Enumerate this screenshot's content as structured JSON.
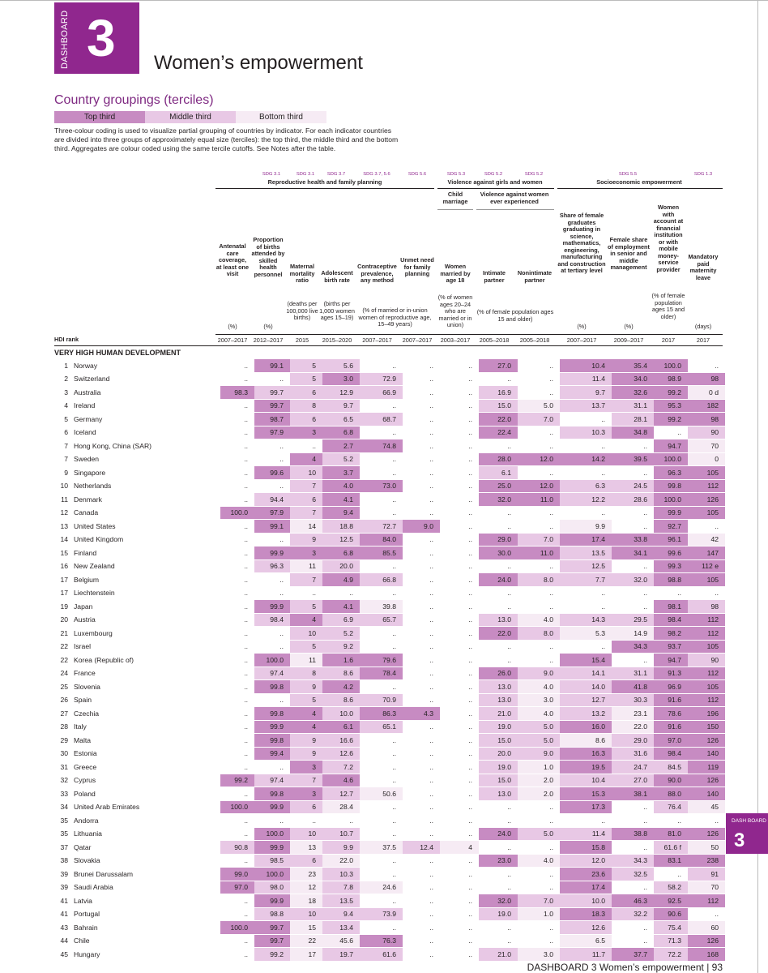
{
  "dashboard": {
    "label": "DASHBOARD",
    "number": "3",
    "title": "Women’s empowerment"
  },
  "groupings": {
    "title": "Country groupings (terciles)",
    "top": "Top third",
    "middle": "Middle third",
    "bottom": "Bottom third"
  },
  "intro": "Three-colour coding is used to visualize partial grouping of countries by indicator. For each indicator countries are divided into three groups of approximately equal size (terciles): the top third, the middle third and the bottom third. Aggregates are colour coded using the same tercile cutoffs. See Notes after the table.",
  "headers": {
    "group_repro": "Reproductive health and family planning",
    "group_violence": "Violence against girls and women",
    "group_socio": "Socioeconomic empowerment",
    "sub_child": "Child marriage",
    "sub_violence": "Violence against women ever experienced",
    "sdg_31a": "SDG 3.1",
    "sdg_31b": "SDG 3.1",
    "sdg_37a": "SDG 3.7",
    "sdg_3756": "SDG 3.7, 5.6",
    "sdg_56": "SDG 5.6",
    "sdg_53": "SDG 5.3",
    "sdg_52a": "SDG 5.2",
    "sdg_52b": "SDG 5.2",
    "sdg_55": "SDG 5.5",
    "sdg_13": "SDG 1.3",
    "col1": "Antenatal care coverage, at least one visit",
    "col2": "Proportion of births attended by skilled health personnel",
    "col3": "Maternal mortality ratio",
    "col4": "Adolescent birth rate",
    "col5": "Contraceptive prevalence, any method",
    "col6": "Unmet need for family planning",
    "col7": "Women married by age 18",
    "col8": "Intimate partner",
    "col9": "Nonintimate partner",
    "col10": "Share of female graduates graduating in science, mathematics, engineering, manufacturing and construction at tertiary level",
    "col11": "Female share of employment in senior and middle management",
    "col12": "Women with account at financial institution or with mobile money-service provider",
    "col13": "Mandatory paid maternity leave",
    "u1": "(%)",
    "u2": "(%)",
    "u3": "(deaths per 100,000 live births)",
    "u4": "(births per 1,000 women ages 15–19)",
    "u56": "(% of married or in-union women of reproductive age, 15–49 years)",
    "u7": "(% of women ages 20–24 who are married or in union)",
    "u89": "(% of female population ages 15 and older)",
    "u10": "(%)",
    "u11": "(%)",
    "u12": "(% of female population ages 15 and older)",
    "u13": "(days)",
    "hdi_rank": "HDI rank",
    "y1": "2007–2017",
    "y2": "2012–2017",
    "y3": "2015",
    "y4": "2015–2020",
    "y5": "2007–2017",
    "y6": "2007–2017",
    "y7": "2003–2017",
    "y8": "2005–2018",
    "y9": "2005–2018",
    "y10": "2007–2017",
    "y11": "2009–2017",
    "y12": "2017",
    "y13": "2017"
  },
  "section": "VERY HIGH HUMAN DEVELOPMENT",
  "rows": [
    [
      "1",
      "Norway",
      "..",
      "99.1",
      "5",
      "5.6",
      "..",
      "..",
      "..",
      "27.0",
      "..",
      "10.4",
      "35.4",
      "100.0",
      ".."
    ],
    [
      "2",
      "Switzerland",
      "..",
      "..",
      "5",
      "3.0",
      "72.9",
      "..",
      "..",
      "..",
      "..",
      "11.4",
      "34.0",
      "98.9",
      "98"
    ],
    [
      "3",
      "Australia",
      "98.3",
      "99.7",
      "6",
      "12.9",
      "66.9",
      "..",
      "..",
      "16.9",
      "..",
      "9.7",
      "32.6",
      "99.2",
      "0 d"
    ],
    [
      "4",
      "Ireland",
      "..",
      "99.7",
      "8",
      "9.7",
      "..",
      "..",
      "..",
      "15.0",
      "5.0",
      "13.7",
      "31.1",
      "95.3",
      "182"
    ],
    [
      "5",
      "Germany",
      "..",
      "98.7",
      "6",
      "6.5",
      "68.7",
      "..",
      "..",
      "22.0",
      "7.0",
      "..",
      "28.1",
      "99.2",
      "98"
    ],
    [
      "6",
      "Iceland",
      "..",
      "97.9",
      "3",
      "6.8",
      "..",
      "..",
      "..",
      "22.4",
      "..",
      "10.3",
      "34.8",
      "..",
      "90"
    ],
    [
      "7",
      "Hong Kong, China (SAR)",
      "..",
      "..",
      "..",
      "2.7",
      "74.8",
      "..",
      "..",
      "..",
      "..",
      "..",
      "..",
      "94.7",
      "70"
    ],
    [
      "7",
      "Sweden",
      "..",
      "..",
      "4",
      "5.2",
      "..",
      "..",
      "..",
      "28.0",
      "12.0",
      "14.2",
      "39.5",
      "100.0",
      "0"
    ],
    [
      "9",
      "Singapore",
      "..",
      "99.6",
      "10",
      "3.7",
      "..",
      "..",
      "..",
      "6.1",
      "..",
      "..",
      "..",
      "96.3",
      "105"
    ],
    [
      "10",
      "Netherlands",
      "..",
      "..",
      "7",
      "4.0",
      "73.0",
      "..",
      "..",
      "25.0",
      "12.0",
      "6.3",
      "24.5",
      "99.8",
      "112"
    ],
    [
      "11",
      "Denmark",
      "..",
      "94.4",
      "6",
      "4.1",
      "..",
      "..",
      "..",
      "32.0",
      "11.0",
      "12.2",
      "28.6",
      "100.0",
      "126"
    ],
    [
      "12",
      "Canada",
      "100.0",
      "97.9",
      "7",
      "9.4",
      "..",
      "..",
      "..",
      "..",
      "..",
      "..",
      "..",
      "99.9",
      "105"
    ],
    [
      "13",
      "United States",
      "..",
      "99.1",
      "14",
      "18.8",
      "72.7",
      "9.0",
      "..",
      "..",
      "..",
      "9.9",
      "..",
      "92.7",
      ".."
    ],
    [
      "14",
      "United Kingdom",
      "..",
      "..",
      "9",
      "12.5",
      "84.0",
      "..",
      "..",
      "29.0",
      "7.0",
      "17.4",
      "33.8",
      "96.1",
      "42"
    ],
    [
      "15",
      "Finland",
      "..",
      "99.9",
      "3",
      "6.8",
      "85.5",
      "..",
      "..",
      "30.0",
      "11.0",
      "13.5",
      "34.1",
      "99.6",
      "147"
    ],
    [
      "16",
      "New Zealand",
      "..",
      "96.3",
      "11",
      "20.0",
      "..",
      "..",
      "..",
      "..",
      "..",
      "12.5",
      "..",
      "99.3",
      "112 e"
    ],
    [
      "17",
      "Belgium",
      "..",
      "..",
      "7",
      "4.9",
      "66.8",
      "..",
      "..",
      "24.0",
      "8.0",
      "7.7",
      "32.0",
      "98.8",
      "105"
    ],
    [
      "17",
      "Liechtenstein",
      "..",
      "..",
      "..",
      "..",
      "..",
      "..",
      "..",
      "..",
      "..",
      "..",
      "..",
      "..",
      ".."
    ],
    [
      "19",
      "Japan",
      "..",
      "99.9",
      "5",
      "4.1",
      "39.8",
      "..",
      "..",
      "..",
      "..",
      "..",
      "..",
      "98.1",
      "98"
    ],
    [
      "20",
      "Austria",
      "..",
      "98.4",
      "4",
      "6.9",
      "65.7",
      "..",
      "..",
      "13.0",
      "4.0",
      "14.3",
      "29.5",
      "98.4",
      "112"
    ],
    [
      "21",
      "Luxembourg",
      "..",
      "..",
      "10",
      "5.2",
      "..",
      "..",
      "..",
      "22.0",
      "8.0",
      "5.3",
      "14.9",
      "98.2",
      "112"
    ],
    [
      "22",
      "Israel",
      "..",
      "..",
      "5",
      "9.2",
      "..",
      "..",
      "..",
      "..",
      "..",
      "..",
      "34.3",
      "93.7",
      "105"
    ],
    [
      "22",
      "Korea (Republic of)",
      "..",
      "100.0",
      "11",
      "1.6",
      "79.6",
      "..",
      "..",
      "..",
      "..",
      "15.4",
      "..",
      "94.7",
      "90"
    ],
    [
      "24",
      "France",
      "..",
      "97.4",
      "8",
      "8.6",
      "78.4",
      "..",
      "..",
      "26.0",
      "9.0",
      "14.1",
      "31.1",
      "91.3",
      "112"
    ],
    [
      "25",
      "Slovenia",
      "..",
      "99.8",
      "9",
      "4.2",
      "..",
      "..",
      "..",
      "13.0",
      "4.0",
      "14.0",
      "41.8",
      "96.9",
      "105"
    ],
    [
      "26",
      "Spain",
      "..",
      "..",
      "5",
      "8.6",
      "70.9",
      "..",
      "..",
      "13.0",
      "3.0",
      "12.7",
      "30.3",
      "91.6",
      "112"
    ],
    [
      "27",
      "Czechia",
      "..",
      "99.8",
      "4",
      "10.0",
      "86.3",
      "4.3",
      "..",
      "21.0",
      "4.0",
      "13.2",
      "23.1",
      "78.6",
      "196"
    ],
    [
      "28",
      "Italy",
      "..",
      "99.9",
      "4",
      "6.1",
      "65.1",
      "..",
      "..",
      "19.0",
      "5.0",
      "16.0",
      "22.0",
      "91.6",
      "150"
    ],
    [
      "29",
      "Malta",
      "..",
      "99.8",
      "9",
      "16.6",
      "..",
      "..",
      "..",
      "15.0",
      "5.0",
      "8.6",
      "29.0",
      "97.0",
      "126"
    ],
    [
      "30",
      "Estonia",
      "..",
      "99.4",
      "9",
      "12.6",
      "..",
      "..",
      "..",
      "20.0",
      "9.0",
      "16.3",
      "31.6",
      "98.4",
      "140"
    ],
    [
      "31",
      "Greece",
      "..",
      "..",
      "3",
      "7.2",
      "..",
      "..",
      "..",
      "19.0",
      "1.0",
      "19.5",
      "24.7",
      "84.5",
      "119"
    ],
    [
      "32",
      "Cyprus",
      "99.2",
      "97.4",
      "7",
      "4.6",
      "..",
      "..",
      "..",
      "15.0",
      "2.0",
      "10.4",
      "27.0",
      "90.0",
      "126"
    ],
    [
      "33",
      "Poland",
      "..",
      "99.8",
      "3",
      "12.7",
      "50.6",
      "..",
      "..",
      "13.0",
      "2.0",
      "15.3",
      "38.1",
      "88.0",
      "140"
    ],
    [
      "34",
      "United Arab Emirates",
      "100.0",
      "99.9",
      "6",
      "28.4",
      "..",
      "..",
      "..",
      "..",
      "..",
      "17.3",
      "..",
      "76.4",
      "45"
    ],
    [
      "35",
      "Andorra",
      "..",
      "..",
      "..",
      "..",
      "..",
      "..",
      "..",
      "..",
      "..",
      "..",
      "..",
      "..",
      ".."
    ],
    [
      "35",
      "Lithuania",
      "..",
      "100.0",
      "10",
      "10.7",
      "..",
      "..",
      "..",
      "24.0",
      "5.0",
      "11.4",
      "38.8",
      "81.0",
      "126"
    ],
    [
      "37",
      "Qatar",
      "90.8",
      "99.9",
      "13",
      "9.9",
      "37.5",
      "12.4",
      "4",
      "..",
      "..",
      "15.8",
      "..",
      "61.6 f",
      "50"
    ],
    [
      "38",
      "Slovakia",
      "..",
      "98.5",
      "6",
      "22.0",
      "..",
      "..",
      "..",
      "23.0",
      "4.0",
      "12.0",
      "34.3",
      "83.1",
      "238"
    ],
    [
      "39",
      "Brunei Darussalam",
      "99.0",
      "100.0",
      "23",
      "10.3",
      "..",
      "..",
      "..",
      "..",
      "..",
      "23.6",
      "32.5",
      "..",
      "91"
    ],
    [
      "39",
      "Saudi Arabia",
      "97.0",
      "98.0",
      "12",
      "7.8",
      "24.6",
      "..",
      "..",
      "..",
      "..",
      "17.4",
      "..",
      "58.2",
      "70"
    ],
    [
      "41",
      "Latvia",
      "..",
      "99.9",
      "18",
      "13.5",
      "..",
      "..",
      "..",
      "32.0",
      "7.0",
      "10.0",
      "46.3",
      "92.5",
      "112"
    ],
    [
      "41",
      "Portugal",
      "..",
      "98.8",
      "10",
      "9.4",
      "73.9",
      "..",
      "..",
      "19.0",
      "1.0",
      "18.3",
      "32.2",
      "90.6",
      ".."
    ],
    [
      "43",
      "Bahrain",
      "100.0",
      "99.7",
      "15",
      "13.4",
      "..",
      "..",
      "..",
      "..",
      "..",
      "12.6",
      "..",
      "75.4",
      "60"
    ],
    [
      "44",
      "Chile",
      "..",
      "99.7",
      "22",
      "45.6",
      "76.3",
      "..",
      "..",
      "..",
      "..",
      "6.5",
      "..",
      "71.3",
      "126"
    ],
    [
      "45",
      "Hungary",
      "..",
      "99.2",
      "17",
      "19.7",
      "61.6",
      "..",
      "..",
      "21.0",
      "3.0",
      "11.7",
      "37.7",
      "72.2",
      "168"
    ]
  ],
  "tiers": [
    [
      0,
      1,
      2,
      2,
      0,
      0,
      0,
      1,
      0,
      1,
      1,
      1,
      0
    ],
    [
      0,
      0,
      2,
      1,
      2,
      0,
      0,
      0,
      0,
      2,
      1,
      1,
      1
    ],
    [
      1,
      2,
      2,
      2,
      2,
      0,
      0,
      2,
      0,
      2,
      1,
      1,
      3
    ],
    [
      0,
      1,
      2,
      2,
      0,
      0,
      0,
      2,
      3,
      2,
      2,
      1,
      1
    ],
    [
      0,
      1,
      2,
      2,
      2,
      0,
      0,
      1,
      2,
      0,
      2,
      1,
      1
    ],
    [
      0,
      1,
      1,
      1,
      0,
      0,
      0,
      1,
      0,
      2,
      1,
      0,
      2
    ],
    [
      0,
      0,
      0,
      1,
      1,
      0,
      0,
      0,
      0,
      0,
      0,
      1,
      3
    ],
    [
      0,
      0,
      1,
      2,
      0,
      0,
      0,
      1,
      1,
      1,
      1,
      1,
      3
    ],
    [
      0,
      1,
      2,
      1,
      0,
      0,
      0,
      2,
      0,
      0,
      0,
      1,
      1
    ],
    [
      0,
      0,
      2,
      1,
      1,
      0,
      0,
      1,
      1,
      2,
      2,
      1,
      1
    ],
    [
      0,
      2,
      2,
      1,
      0,
      0,
      0,
      1,
      1,
      2,
      2,
      1,
      1
    ],
    [
      1,
      1,
      2,
      1,
      0,
      0,
      0,
      0,
      0,
      0,
      0,
      1,
      1
    ],
    [
      0,
      1,
      3,
      2,
      2,
      1,
      0,
      0,
      0,
      3,
      0,
      1,
      0
    ],
    [
      0,
      0,
      2,
      2,
      1,
      0,
      0,
      1,
      2,
      1,
      1,
      1,
      3
    ],
    [
      0,
      1,
      1,
      1,
      1,
      0,
      0,
      1,
      1,
      2,
      1,
      1,
      1
    ],
    [
      0,
      2,
      3,
      2,
      0,
      0,
      0,
      0,
      0,
      2,
      0,
      1,
      1
    ],
    [
      0,
      0,
      2,
      1,
      2,
      0,
      0,
      1,
      2,
      2,
      2,
      1,
      1
    ],
    [
      0,
      0,
      0,
      0,
      0,
      0,
      0,
      0,
      0,
      0,
      0,
      0,
      0
    ],
    [
      0,
      1,
      2,
      1,
      3,
      0,
      0,
      0,
      0,
      0,
      0,
      1,
      2
    ],
    [
      0,
      2,
      1,
      2,
      2,
      0,
      0,
      2,
      3,
      2,
      2,
      1,
      1
    ],
    [
      0,
      0,
      2,
      2,
      0,
      0,
      0,
      1,
      2,
      3,
      3,
      1,
      1
    ],
    [
      0,
      0,
      2,
      2,
      0,
      0,
      0,
      0,
      0,
      0,
      1,
      1,
      1
    ],
    [
      0,
      1,
      3,
      1,
      1,
      0,
      0,
      0,
      0,
      1,
      0,
      1,
      2
    ],
    [
      0,
      2,
      2,
      2,
      1,
      0,
      0,
      1,
      2,
      2,
      2,
      1,
      1
    ],
    [
      0,
      1,
      2,
      1,
      0,
      0,
      0,
      2,
      3,
      2,
      1,
      1,
      1
    ],
    [
      0,
      0,
      2,
      2,
      2,
      0,
      0,
      2,
      3,
      2,
      2,
      1,
      1
    ],
    [
      0,
      1,
      1,
      2,
      1,
      1,
      0,
      2,
      3,
      2,
      3,
      1,
      1
    ],
    [
      0,
      1,
      1,
      1,
      2,
      0,
      0,
      2,
      2,
      1,
      3,
      1,
      1
    ],
    [
      0,
      1,
      2,
      2,
      0,
      0,
      0,
      2,
      2,
      3,
      2,
      1,
      1
    ],
    [
      0,
      1,
      2,
      2,
      0,
      0,
      0,
      2,
      2,
      1,
      2,
      1,
      1
    ],
    [
      0,
      0,
      1,
      2,
      0,
      0,
      0,
      2,
      3,
      1,
      2,
      2,
      1
    ],
    [
      1,
      2,
      2,
      1,
      0,
      0,
      0,
      2,
      3,
      2,
      2,
      1,
      1
    ],
    [
      0,
      1,
      1,
      2,
      3,
      0,
      0,
      2,
      3,
      1,
      1,
      1,
      1
    ],
    [
      1,
      1,
      2,
      3,
      0,
      0,
      0,
      0,
      0,
      1,
      0,
      2,
      3
    ],
    [
      0,
      0,
      0,
      0,
      0,
      0,
      0,
      0,
      0,
      0,
      0,
      0,
      0
    ],
    [
      0,
      1,
      2,
      2,
      0,
      0,
      0,
      1,
      2,
      2,
      1,
      1,
      1
    ],
    [
      2,
      1,
      3,
      2,
      3,
      2,
      3,
      0,
      0,
      1,
      0,
      2,
      3
    ],
    [
      0,
      2,
      2,
      3,
      0,
      0,
      0,
      1,
      3,
      2,
      2,
      1,
      1
    ],
    [
      1,
      1,
      3,
      2,
      0,
      0,
      0,
      0,
      0,
      1,
      2,
      0,
      2
    ],
    [
      1,
      2,
      3,
      2,
      3,
      0,
      0,
      0,
      0,
      1,
      0,
      2,
      3
    ],
    [
      0,
      1,
      3,
      2,
      0,
      0,
      0,
      1,
      2,
      2,
      1,
      1,
      1
    ],
    [
      0,
      2,
      2,
      2,
      2,
      0,
      0,
      2,
      3,
      1,
      2,
      1,
      0
    ],
    [
      1,
      1,
      3,
      2,
      0,
      0,
      0,
      0,
      0,
      2,
      0,
      2,
      3
    ],
    [
      0,
      1,
      3,
      3,
      1,
      0,
      0,
      0,
      0,
      3,
      0,
      2,
      1
    ],
    [
      0,
      2,
      3,
      2,
      2,
      0,
      0,
      2,
      3,
      2,
      1,
      2,
      1
    ]
  ],
  "side_tab": {
    "label": "DASH BOARD",
    "number": "3"
  },
  "footer": {
    "text": "DASHBOARD 3   Women’s empowerment   |   93"
  },
  "colors": {
    "brand": "#90278e",
    "top": "#c78bc2",
    "middle": "#e8c8e5",
    "bottom": "#f6ebf4"
  }
}
